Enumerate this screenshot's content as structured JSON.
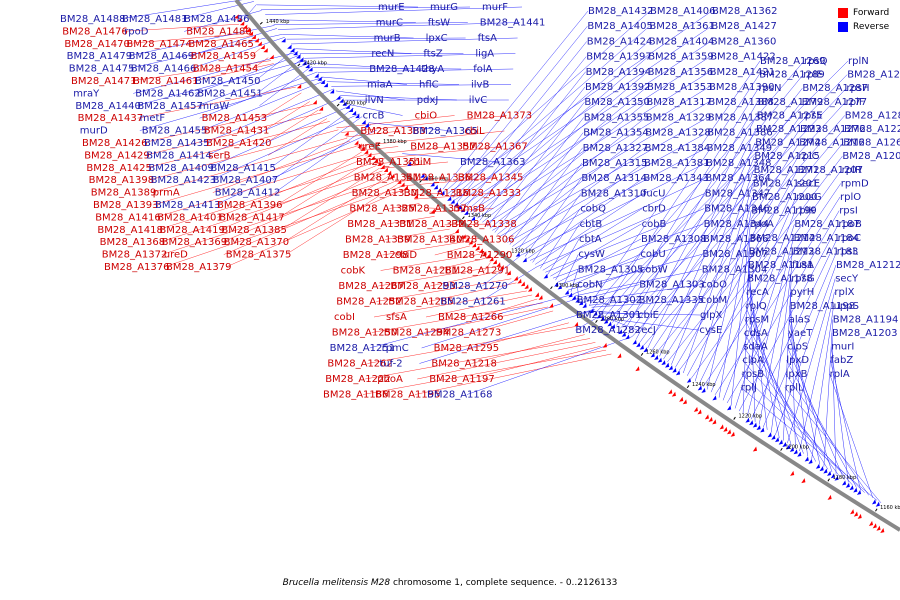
{
  "colors": {
    "forward": "#ff0000",
    "reverse": "#0000ff",
    "axis": "#888888",
    "text_forward": "#cc0000",
    "text_reverse": "#1a1aa6"
  },
  "legend": {
    "forward": "Forward",
    "reverse": "Reverse"
  },
  "caption": {
    "organism": "Brucella melitensis M28",
    "rest": " chromosome 1, complete sequence. - 0..2126133"
  },
  "ticks": [
    "1440 kbp",
    "1420 kbp",
    "1400 kbp",
    "1380 kbp",
    "1360 kbp",
    "1340 kbp",
    "1320 kbp",
    "1300 kbp",
    "1280 kbp",
    "1260 kbp",
    "1240 kbp",
    "1220 kbp",
    "1200 kbp",
    "1180 kbp",
    "1160 kbp"
  ],
  "labels_left": [
    {
      "t": "BM28_A1488",
      "s": "r"
    },
    {
      "t": "BM28_A1481",
      "s": "r"
    },
    {
      "t": "BM28_A1486",
      "s": "r"
    },
    {
      "t": "BM28_A1476",
      "s": "f"
    },
    {
      "t": "rpoD",
      "s": "r"
    },
    {
      "t": "BM28_A1480",
      "s": "f"
    },
    {
      "t": "BM28_A1470",
      "s": "f"
    },
    {
      "t": "BM28_A1474",
      "s": "f"
    },
    {
      "t": "BM28_A1465",
      "s": "f"
    },
    {
      "t": "BM28_A1479",
      "s": "r"
    },
    {
      "t": "BM28_A1469",
      "s": "r"
    },
    {
      "t": "BM28_A1459",
      "s": "f"
    },
    {
      "t": "BM28_A1475",
      "s": "r"
    },
    {
      "t": "BM28_A1466",
      "s": "r"
    },
    {
      "t": "BM28_A1454",
      "s": "f"
    },
    {
      "t": "BM28_A1471",
      "s": "f"
    },
    {
      "t": "BM28_A1461",
      "s": "f"
    },
    {
      "t": "BM28_A1450",
      "s": "r"
    },
    {
      "t": "mraY",
      "s": "r"
    },
    {
      "t": "BM28_A1462",
      "s": "r"
    },
    {
      "t": "BM28_A1451",
      "s": "r"
    },
    {
      "t": "BM28_A1440",
      "s": "r"
    },
    {
      "t": "BM28_A1457",
      "s": "r"
    },
    {
      "t": "mraW",
      "s": "r"
    },
    {
      "t": "BM28_A1437",
      "s": "f"
    },
    {
      "t": "metF",
      "s": "r"
    },
    {
      "t": "BM28_A1453",
      "s": "f"
    },
    {
      "t": "murD",
      "s": "r"
    },
    {
      "t": "BM28_A1455",
      "s": "r"
    },
    {
      "t": "BM28_A1431",
      "s": "f"
    },
    {
      "t": "BM28_A1426",
      "s": "f"
    },
    {
      "t": "BM28_A1435",
      "s": "r"
    },
    {
      "t": "BM28_A1420",
      "s": "f"
    },
    {
      "t": "BM28_A1429",
      "s": "f"
    },
    {
      "t": "BM28_A1414",
      "s": "r"
    },
    {
      "t": "serB",
      "s": "f"
    },
    {
      "t": "BM28_A1425",
      "s": "f"
    },
    {
      "t": "BM28_A1409",
      "s": "r"
    },
    {
      "t": "BM28_A1415",
      "s": "r"
    },
    {
      "t": "BM28_A1398",
      "s": "f"
    },
    {
      "t": "BM28_A1423",
      "s": "r"
    },
    {
      "t": "BM28_A1407",
      "s": "r"
    },
    {
      "t": "BM28_A1389",
      "s": "f"
    },
    {
      "t": "prmA",
      "s": "f"
    },
    {
      "t": "BM28_A1412",
      "s": "r"
    },
    {
      "t": "BM28_A1393",
      "s": "f"
    },
    {
      "t": "BM28_A1413",
      "s": "r"
    },
    {
      "t": "BM28_A1396",
      "s": "f"
    },
    {
      "t": "BM28_A1416",
      "s": "f"
    },
    {
      "t": "BM28_A1401",
      "s": "f"
    },
    {
      "t": "BM28_A1417",
      "s": "f"
    },
    {
      "t": "BM28_A1418",
      "s": "f"
    },
    {
      "t": "BM28_A1419",
      "s": "f"
    },
    {
      "t": "BM28_A1385",
      "s": "f"
    },
    {
      "t": "BM28_A1368",
      "s": "f"
    },
    {
      "t": "BM28_A1369",
      "s": "f"
    },
    {
      "t": "BM28_A1370",
      "s": "f"
    },
    {
      "t": "BM28_A1372",
      "s": "f"
    },
    {
      "t": "ureD",
      "s": "f"
    },
    {
      "t": "BM28_A1375",
      "s": "f"
    },
    {
      "t": "BM28_A1376",
      "s": "f"
    },
    {
      "t": "BM28_A1379",
      "s": "f"
    }
  ],
  "labels_mid": [
    {
      "t": "murE",
      "s": "r"
    },
    {
      "t": "murG",
      "s": "r"
    },
    {
      "t": "murF",
      "s": "r"
    },
    {
      "t": "murC",
      "s": "r"
    },
    {
      "t": "ftsW",
      "s": "r"
    },
    {
      "t": "BM28_A1441",
      "s": "r"
    },
    {
      "t": "murB",
      "s": "r"
    },
    {
      "t": "lpxC",
      "s": "r"
    },
    {
      "t": "ftsA",
      "s": "r"
    },
    {
      "t": "recN",
      "s": "r"
    },
    {
      "t": "ftsZ",
      "s": "r"
    },
    {
      "t": "ligA",
      "s": "r"
    },
    {
      "t": "BM28_A1428",
      "s": "r"
    },
    {
      "t": "thyA",
      "s": "r"
    },
    {
      "t": "folA",
      "s": "r"
    },
    {
      "t": "miaA",
      "s": "r"
    },
    {
      "t": "hflC",
      "s": "r"
    },
    {
      "t": "ilvB",
      "s": "r"
    },
    {
      "t": "ilvN",
      "s": "r"
    },
    {
      "t": "pdxJ",
      "s": "r"
    },
    {
      "t": "ilvC",
      "s": "r"
    },
    {
      "t": "crcB",
      "s": "r"
    },
    {
      "t": "cbiO",
      "s": "f"
    },
    {
      "t": "BM28_A1373",
      "s": "f"
    },
    {
      "t": "BM28_A1383",
      "s": "f"
    },
    {
      "t": "BM28_A1365",
      "s": "r"
    },
    {
      "t": "cbiL",
      "s": "f"
    },
    {
      "t": "ureE",
      "s": "f"
    },
    {
      "t": "BM28_A1357",
      "s": "f"
    },
    {
      "t": "BM28_A1367",
      "s": "f"
    },
    {
      "t": "BM28_A1351",
      "s": "f"
    },
    {
      "t": "cbiM",
      "s": "f"
    },
    {
      "t": "BM28_A1363",
      "s": "r"
    },
    {
      "t": "BM28_A1341",
      "s": "f"
    },
    {
      "t": "BM28_A1336",
      "s": "f"
    },
    {
      "t": "BM28_A1345",
      "s": "f"
    },
    {
      "t": "BM28_A1330",
      "s": "f"
    },
    {
      "t": "BM28_A1316",
      "s": "f"
    },
    {
      "t": "BM28_A1333",
      "s": "f"
    },
    {
      "t": "BM28_A1325",
      "s": "f"
    },
    {
      "t": "BM28_A1337",
      "s": "f"
    },
    {
      "t": "mmsB",
      "s": "f"
    },
    {
      "t": "BM28_A1331",
      "s": "f"
    },
    {
      "t": "BM28_A1332",
      "s": "f"
    },
    {
      "t": "BM28_A1338",
      "s": "f"
    },
    {
      "t": "BM28_A1339",
      "s": "f"
    },
    {
      "t": "BM28_A1340",
      "s": "f"
    },
    {
      "t": "BM28_A1306",
      "s": "f"
    },
    {
      "t": "BM28_A1298",
      "s": "f"
    },
    {
      "t": "cbiD",
      "s": "f"
    },
    {
      "t": "BM28_A1290",
      "s": "f"
    },
    {
      "t": "cobK",
      "s": "f"
    },
    {
      "t": "BM28_A1281",
      "s": "f"
    },
    {
      "t": "BM28_A1291",
      "s": "f"
    },
    {
      "t": "BM28_A1267",
      "s": "f"
    },
    {
      "t": "BM28_A1293",
      "s": "f"
    },
    {
      "t": "BM28_A1270",
      "s": "r"
    },
    {
      "t": "BM28_A1252",
      "s": "f"
    },
    {
      "t": "BM28_A1285",
      "s": "f"
    },
    {
      "t": "BM28_A1261",
      "s": "r"
    },
    {
      "t": "cobI",
      "s": "f"
    },
    {
      "t": "sfsA",
      "s": "f"
    },
    {
      "t": "BM28_A1266",
      "s": "f"
    },
    {
      "t": "BM28_A1250",
      "s": "f"
    },
    {
      "t": "BM28_A1294",
      "s": "f"
    },
    {
      "t": "BM28_A1273",
      "s": "f"
    },
    {
      "t": "BM28_A1251",
      "s": "r"
    },
    {
      "t": "rpmC",
      "s": "r"
    },
    {
      "t": "BM28_A1295",
      "s": "f"
    },
    {
      "t": "BM28_A1262",
      "s": "f"
    },
    {
      "t": "tuf-2",
      "s": "r"
    },
    {
      "t": "BM28_A1218",
      "s": "f"
    },
    {
      "t": "BM28_A1222",
      "s": "f"
    },
    {
      "t": "phoA",
      "s": "f"
    },
    {
      "t": "BM28_A1197",
      "s": "f"
    },
    {
      "t": "BM28_A1186",
      "s": "f"
    },
    {
      "t": "BM28_A1195",
      "s": "f"
    },
    {
      "t": "BM28_A1168",
      "s": "r"
    }
  ],
  "labels_right": [
    {
      "t": "BM28_A1432",
      "s": "r"
    },
    {
      "t": "BM28_A1406",
      "s": "r"
    },
    {
      "t": "BM28_A1362",
      "s": "r"
    },
    {
      "t": "BM28_A1405",
      "s": "r"
    },
    {
      "t": "BM28_A1361",
      "s": "r"
    },
    {
      "t": "BM28_A1427",
      "s": "r"
    },
    {
      "t": "BM28_A1424",
      "s": "r"
    },
    {
      "t": "BM28_A1404",
      "s": "r"
    },
    {
      "t": "BM28_A1360",
      "s": "r"
    },
    {
      "t": "BM28_A1397",
      "s": "r"
    },
    {
      "t": "BM28_A1359",
      "s": "r"
    },
    {
      "t": "BM28_A1422",
      "s": "r"
    },
    {
      "t": "BM28_A1394",
      "s": "r"
    },
    {
      "t": "BM28_A1356",
      "s": "r"
    },
    {
      "t": "BM28_A1421",
      "s": "r"
    },
    {
      "t": "BM28_A1392",
      "s": "r"
    },
    {
      "t": "BM28_A1353",
      "s": "r"
    },
    {
      "t": "BM28_A1390",
      "s": "r"
    },
    {
      "t": "BM28_A1350",
      "s": "r"
    },
    {
      "t": "BM28_A1317",
      "s": "r"
    },
    {
      "t": "BM28_A1388",
      "s": "r"
    },
    {
      "t": "BM28_A1355",
      "s": "r"
    },
    {
      "t": "BM28_A1329",
      "s": "r"
    },
    {
      "t": "BM28_A1387",
      "s": "r"
    },
    {
      "t": "BM28_A1354",
      "s": "r"
    },
    {
      "t": "BM28_A1328",
      "s": "r"
    },
    {
      "t": "BM28_A1386",
      "s": "r"
    },
    {
      "t": "BM28_A1327",
      "s": "r"
    },
    {
      "t": "BM28_A1384",
      "s": "r"
    },
    {
      "t": "BM28_A1349",
      "s": "r"
    },
    {
      "t": "BM28_A1315",
      "s": "r"
    },
    {
      "t": "BM28_A1381",
      "s": "r"
    },
    {
      "t": "BM28_A1348",
      "s": "r"
    },
    {
      "t": "BM28_A1314",
      "s": "r"
    },
    {
      "t": "BM28_A1343",
      "s": "r"
    },
    {
      "t": "BM28_A1364",
      "s": "r"
    },
    {
      "t": "BM28_A1310",
      "s": "r"
    },
    {
      "t": "fucU",
      "s": "r"
    },
    {
      "t": "BM28_A1347",
      "s": "r"
    },
    {
      "t": "cobQ",
      "s": "r"
    },
    {
      "t": "cbrD",
      "s": "r"
    },
    {
      "t": "BM28_A1346",
      "s": "r"
    },
    {
      "t": "cbtB",
      "s": "r"
    },
    {
      "t": "cobB",
      "s": "r"
    },
    {
      "t": "BM28_A1344",
      "s": "r"
    },
    {
      "t": "cbtA",
      "s": "r"
    },
    {
      "t": "BM28_A1308",
      "s": "r"
    },
    {
      "t": "BM28_A1366",
      "s": "r"
    },
    {
      "t": "cysW",
      "s": "r"
    },
    {
      "t": "cobU",
      "s": "r"
    },
    {
      "t": "BM28_A1307",
      "s": "r"
    },
    {
      "t": "BM28_A1305",
      "s": "r"
    },
    {
      "t": "cobW",
      "s": "r"
    },
    {
      "t": "BM28_A1304",
      "s": "r"
    },
    {
      "t": "cobN",
      "s": "r"
    },
    {
      "t": "BM28_A1303",
      "s": "r"
    },
    {
      "t": "cobO",
      "s": "r"
    },
    {
      "t": "BM28_A1302",
      "s": "r"
    },
    {
      "t": "BM28_A1335",
      "s": "r"
    },
    {
      "t": "cobM",
      "s": "r"
    },
    {
      "t": "BM28_A1301",
      "s": "r"
    },
    {
      "t": "cbiE",
      "s": "r"
    },
    {
      "t": "glpX",
      "s": "r"
    },
    {
      "t": "BM28_A1282",
      "s": "r"
    },
    {
      "t": "recJ",
      "s": "r"
    },
    {
      "t": "cysE",
      "s": "r"
    }
  ],
  "labels_far": [
    {
      "t": "BM28_A1269",
      "s": "r"
    },
    {
      "t": "rpsQ",
      "s": "r"
    },
    {
      "t": "rplN",
      "s": "r"
    },
    {
      "t": "BM28_A1289",
      "s": "r"
    },
    {
      "t": "rplE",
      "s": "r"
    },
    {
      "t": "BM28_A1288",
      "s": "r"
    },
    {
      "t": "rpsN",
      "s": "r"
    },
    {
      "t": "BM28_A1287",
      "s": "r"
    },
    {
      "t": "rpsH",
      "s": "r"
    },
    {
      "t": "BM28_A1279",
      "s": "r"
    },
    {
      "t": "BM28_A1277",
      "s": "r"
    },
    {
      "t": "rplF",
      "s": "r"
    },
    {
      "t": "BM28_A1275",
      "s": "r"
    },
    {
      "t": "rpsE",
      "s": "r"
    },
    {
      "t": "BM28_A1286",
      "s": "r"
    },
    {
      "t": "BM28_A1223",
      "s": "r"
    },
    {
      "t": "BM28_A1276",
      "s": "r"
    },
    {
      "t": "BM28_A1220",
      "s": "r"
    },
    {
      "t": "BM28_A1274",
      "s": "r"
    },
    {
      "t": "BM28_A1216",
      "s": "r"
    },
    {
      "t": "BM28_A1268",
      "s": "r"
    },
    {
      "t": "BM28_A1215",
      "s": "r"
    },
    {
      "t": "rplC",
      "s": "r"
    },
    {
      "t": "BM28_A1208",
      "s": "r"
    },
    {
      "t": "BM28_A1271",
      "s": "r"
    },
    {
      "t": "BM28_A1207",
      "s": "r"
    },
    {
      "t": "rplR",
      "s": "r"
    },
    {
      "t": "BM28_A1201",
      "s": "r"
    },
    {
      "t": "secE",
      "s": "r"
    },
    {
      "t": "rpmD",
      "s": "r"
    },
    {
      "t": "BM28_A1200",
      "s": "r"
    },
    {
      "t": "nusG",
      "s": "r"
    },
    {
      "t": "rplO",
      "s": "r"
    },
    {
      "t": "BM28_A1199",
      "s": "r"
    },
    {
      "t": "rplK",
      "s": "r"
    },
    {
      "t": "rpsI",
      "s": "r"
    },
    {
      "t": "rpoA",
      "s": "r"
    },
    {
      "t": "BM28_A1187",
      "s": "r"
    },
    {
      "t": "rpoB",
      "s": "r"
    },
    {
      "t": "BM28_A1214",
      "s": "r"
    },
    {
      "t": "BM28_A1184",
      "s": "r"
    },
    {
      "t": "rpoC",
      "s": "r"
    },
    {
      "t": "BM28_A1213",
      "s": "r"
    },
    {
      "t": "BM28_A1183",
      "s": "r"
    },
    {
      "t": "rpsL",
      "s": "r"
    },
    {
      "t": "BM28_A1181",
      "s": "r"
    },
    {
      "t": "fusA",
      "s": "r"
    },
    {
      "t": "BM28_A1212",
      "s": "r"
    },
    {
      "t": "BM28_A1178",
      "s": "r"
    },
    {
      "t": "rpsG",
      "s": "r"
    },
    {
      "t": "secY",
      "s": "r"
    },
    {
      "t": "recA",
      "s": "r"
    },
    {
      "t": "pyrH",
      "s": "r"
    },
    {
      "t": "rplX",
      "s": "r"
    },
    {
      "t": "rplQ",
      "s": "r"
    },
    {
      "t": "BM28_A1198",
      "s": "r"
    },
    {
      "t": "uppS",
      "s": "r"
    },
    {
      "t": "rpsM",
      "s": "r"
    },
    {
      "t": "alaS",
      "s": "r"
    },
    {
      "t": "BM28_A1194",
      "s": "r"
    },
    {
      "t": "cdsA",
      "s": "r"
    },
    {
      "t": "yaeT",
      "s": "r"
    },
    {
      "t": "BM28_A1203",
      "s": "r"
    },
    {
      "t": "sdaA",
      "s": "r"
    },
    {
      "t": "clpS",
      "s": "r"
    },
    {
      "t": "murI",
      "s": "r"
    },
    {
      "t": "clpA",
      "s": "r"
    },
    {
      "t": "lpxD",
      "s": "r"
    },
    {
      "t": "fabZ",
      "s": "r"
    },
    {
      "t": "rpsB",
      "s": "r"
    },
    {
      "t": "lpxB",
      "s": "r"
    },
    {
      "t": "rplA",
      "s": "r"
    },
    {
      "t": "rplJ",
      "s": "r"
    },
    {
      "t": "rplL",
      "s": "r"
    }
  ]
}
